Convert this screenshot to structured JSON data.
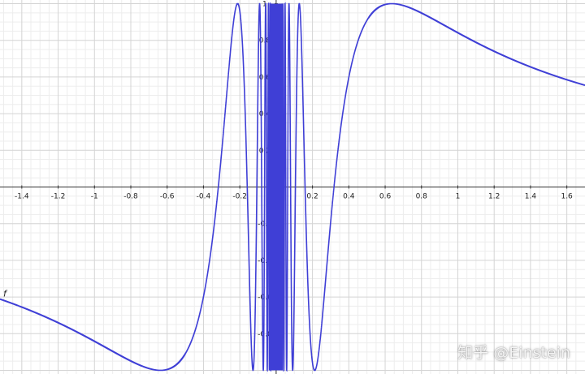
{
  "chart_data": {
    "type": "line",
    "title": "",
    "xlabel": "",
    "ylabel": "",
    "xlim": [
      -1.52,
      1.7
    ],
    "ylim": [
      -1.02,
      1.02
    ],
    "grid": true,
    "function_label": "f",
    "function_expression": "sin(1/x)",
    "x_ticks": [
      -1.4,
      -1.2,
      -1,
      -0.8,
      -0.6,
      -0.4,
      -0.2,
      0,
      0.2,
      0.4,
      0.6,
      0.8,
      1,
      1.2,
      1.4,
      1.6
    ],
    "y_ticks": [
      -0.8,
      -0.6,
      -0.4,
      -0.2,
      0.2,
      0.4,
      0.6,
      0.8,
      1
    ],
    "series": [
      {
        "color": "#3f3fd6"
      }
    ]
  },
  "watermark": "知乎 @Einstein"
}
